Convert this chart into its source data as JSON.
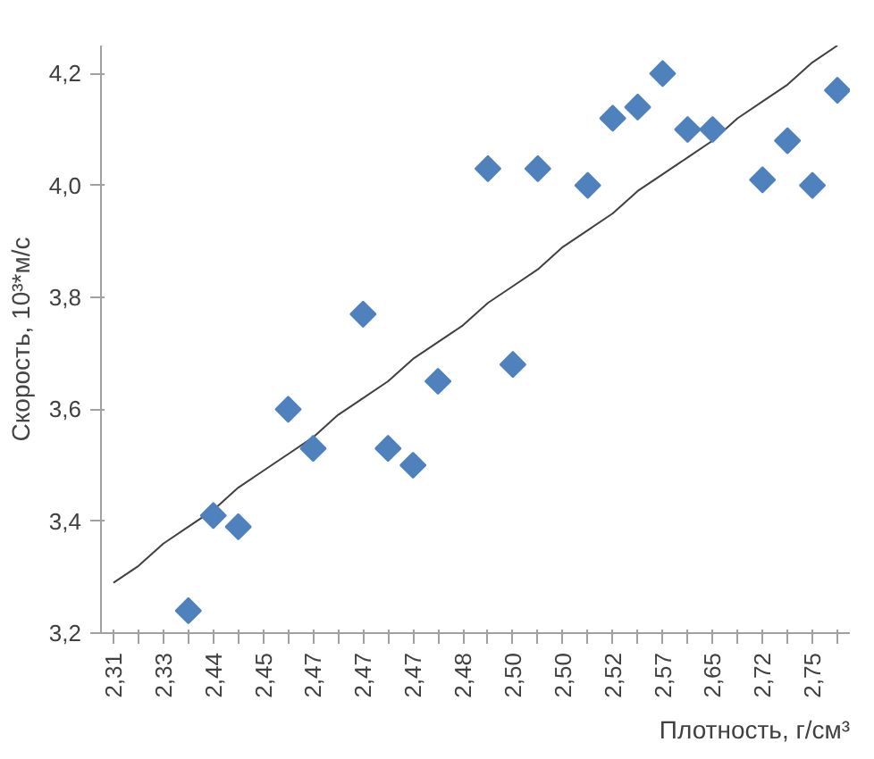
{
  "chart_data": {
    "type": "scatter",
    "xlabel": "Плотность, г/см³",
    "ylabel": "Скорость, 10³*м/с",
    "categories": [
      "2,31",
      null,
      "2,33",
      null,
      "2,44",
      null,
      "2,45",
      null,
      "2,47",
      null,
      "2,47",
      null,
      "2,47",
      null,
      "2,48",
      null,
      "2,50",
      null,
      "2,50",
      null,
      "2,52",
      null,
      "2,57",
      null,
      "2,65",
      null,
      "2,72",
      null,
      "2,75",
      null
    ],
    "series": [
      {
        "color": "#4f81bd",
        "marker": "diamond",
        "values": [
          null,
          null,
          null,
          3.24,
          3.41,
          3.39,
          null,
          3.6,
          3.53,
          null,
          3.77,
          3.53,
          3.5,
          3.65,
          null,
          4.03,
          3.68,
          4.03,
          null,
          4.0,
          4.12,
          4.14,
          4.2,
          4.1,
          4.1,
          null,
          4.01,
          4.08,
          4.0,
          4.17
        ]
      },
      {
        "type": "line",
        "color": "#404040",
        "values": [
          3.29,
          3.32,
          3.36,
          3.39,
          3.42,
          3.46,
          3.49,
          3.52,
          3.55,
          3.59,
          3.62,
          3.65,
          3.69,
          3.72,
          3.75,
          3.79,
          3.82,
          3.85,
          3.89,
          3.92,
          3.95,
          3.99,
          4.02,
          4.05,
          4.08,
          4.12,
          4.15,
          4.18,
          4.22,
          4.25
        ]
      }
    ],
    "ylim": [
      3.2,
      4.25
    ],
    "yticks": [
      {
        "value": 3.2,
        "label": "3,2"
      },
      {
        "value": 3.4,
        "label": "3,4"
      },
      {
        "value": 3.6,
        "label": "3,6"
      },
      {
        "value": 3.8,
        "label": "3,8"
      },
      {
        "value": 4.0,
        "label": "4,0"
      },
      {
        "value": 4.2,
        "label": "4,2"
      }
    ],
    "grid": false
  }
}
